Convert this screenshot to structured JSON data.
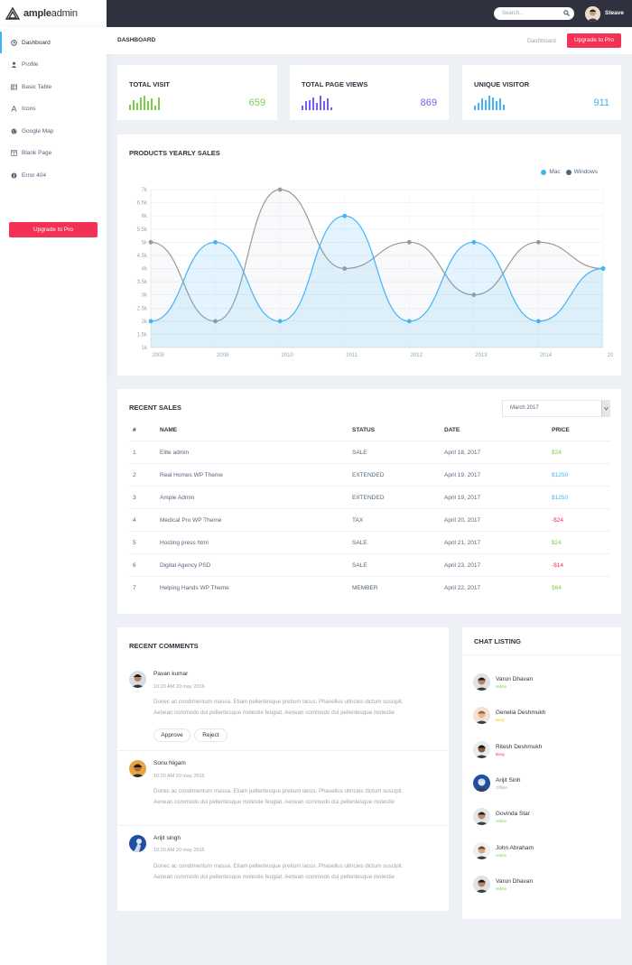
{
  "brand": {
    "bold": "ample",
    "light": "admin"
  },
  "topbar": {
    "search_placeholder": "Search...",
    "user_name": "Steave"
  },
  "sidebar": {
    "items": [
      {
        "label": "Dashboard",
        "icon": "clock-icon"
      },
      {
        "label": "Profile",
        "icon": "user-icon"
      },
      {
        "label": "Basic Table",
        "icon": "table-icon"
      },
      {
        "label": "Icons",
        "icon": "font-icon"
      },
      {
        "label": "Google Map",
        "icon": "globe-icon"
      },
      {
        "label": "Blank Page",
        "icon": "columns-icon"
      },
      {
        "label": "Error 404",
        "icon": "info-icon"
      }
    ],
    "upgrade_label": "Upgrade to Pro"
  },
  "header": {
    "title": "DASHBOARD",
    "breadcrumb": "Dashboard",
    "upgrade_label": "Upgrade to Pro"
  },
  "stats": [
    {
      "title": "TOTAL VISIT",
      "value": "659",
      "color": "#7ace4c",
      "bars": [
        4,
        7,
        5,
        9,
        10,
        6,
        8,
        3,
        9
      ]
    },
    {
      "title": "TOTAL PAGE VIEWS",
      "value": "869",
      "color": "#7460ee",
      "bars": [
        3,
        6,
        7,
        9,
        5,
        10,
        6,
        8,
        2
      ]
    },
    {
      "title": "UNIQUE VISITOR",
      "value": "911",
      "color": "#41b3f9",
      "bars": [
        3,
        5,
        8,
        7,
        10,
        9,
        6,
        8,
        4
      ]
    }
  ],
  "chart_data": {
    "type": "area",
    "title": "PRODUCTS YEARLY SALES",
    "x": [
      "2008",
      "2009",
      "2010",
      "2011",
      "2012",
      "2013",
      "2014",
      "20"
    ],
    "y_ticks": [
      "1k",
      "1.5k",
      "2k",
      "2.5k",
      "3k",
      "3.5k",
      "4k",
      "4.5k",
      "5k",
      "5.5k",
      "6k",
      "6.5k",
      "7k"
    ],
    "ylim": [
      1000,
      7000
    ],
    "series": [
      {
        "name": "Mac",
        "color": "#41b3f9",
        "values": [
          2000,
          5000,
          2000,
          6000,
          2000,
          5000,
          2000,
          4000
        ]
      },
      {
        "name": "Windows",
        "color": "#999999",
        "values": [
          5000,
          2000,
          7000,
          4000,
          5000,
          3000,
          5000,
          4000
        ]
      }
    ],
    "legend": "top-right",
    "grid": true
  },
  "sales": {
    "title": "RECENT SALES",
    "month": "March 2017",
    "headers": [
      "#",
      "NAME",
      "STATUS",
      "DATE",
      "PRICE"
    ],
    "rows": [
      {
        "n": "1",
        "name": "Elite admin",
        "status": "SALE",
        "date": "April 18, 2017",
        "price": "$24",
        "color": "#7ace4c"
      },
      {
        "n": "2",
        "name": "Real Homes WP Theme",
        "status": "EXTENDED",
        "date": "April 19, 2017",
        "price": "$1250",
        "color": "#41b3f9"
      },
      {
        "n": "3",
        "name": "Ample Admin",
        "status": "EXTENDED",
        "date": "April 19, 2017",
        "price": "$1250",
        "color": "#41b3f9"
      },
      {
        "n": "4",
        "name": "Medical Pro WP Theme",
        "status": "TAX",
        "date": "April 20, 2017",
        "price": "-$24",
        "color": "#f33155"
      },
      {
        "n": "5",
        "name": "Hosting press html",
        "status": "SALE",
        "date": "April 21, 2017",
        "price": "$24",
        "color": "#7ace4c"
      },
      {
        "n": "6",
        "name": "Digital Agency PSD",
        "status": "SALE",
        "date": "April 23, 2017",
        "price": "-$14",
        "color": "#f33155"
      },
      {
        "n": "7",
        "name": "Helping Hands WP Theme",
        "status": "MEMBER",
        "date": "April 22, 2017",
        "price": "$64",
        "color": "#7ace4c"
      }
    ]
  },
  "comments": {
    "title": "RECENT COMMENTS",
    "approve_label": "Approve",
    "reject_label": "Reject",
    "items": [
      {
        "name": "Pavan kumar",
        "time": "10:20 AM 20 may 2016",
        "text1": "Donec ac condimentum massa. Etiam pellentesque pretium lacus. Phasellus ultricies dictum suscipit.",
        "text2": "Aenean commodo dui pellentesque molestie feugiat. Aenean commodo dui pellentesque molestie"
      },
      {
        "name": "Sonu Nigam",
        "time": "10:20 AM 20 may 2016",
        "text1": "Donec ac condimentum massa. Etiam pellentesque pretium lacus. Phasellus ultricies dictum suscipit.",
        "text2": "Aenean commodo dui pellentesque molestie feugiat. Aenean commodo dui pellentesque molestie"
      },
      {
        "name": "Arijit singh",
        "time": "10:20 AM 20 may 2016",
        "text1": "Donec ac condimentum massa. Etiam pellentesque pretium lacus. Phasellus ultricies dictum suscipit.",
        "text2": "Aenean commodo dui pellentesque molestie feugiat. Aenean commodo dui pellentesque molestie"
      }
    ]
  },
  "chat": {
    "title": "CHAT LISTING",
    "items": [
      {
        "name": "Varun Dhavan",
        "status": "online",
        "color": "#7ace4c"
      },
      {
        "name": "Genelia Deshmukh",
        "status": "Busy",
        "color": "#fec107"
      },
      {
        "name": "Ritesh Deshmukh",
        "status": "Busy",
        "color": "#f33155"
      },
      {
        "name": "Arijit Sinh",
        "status": "Offline",
        "color": "#98a6ad"
      },
      {
        "name": "Govinda Star",
        "status": "online",
        "color": "#7ace4c"
      },
      {
        "name": "John Abraham",
        "status": "online",
        "color": "#7ace4c"
      },
      {
        "name": "Varun Dhavan",
        "status": "online",
        "color": "#7ace4c"
      }
    ]
  }
}
